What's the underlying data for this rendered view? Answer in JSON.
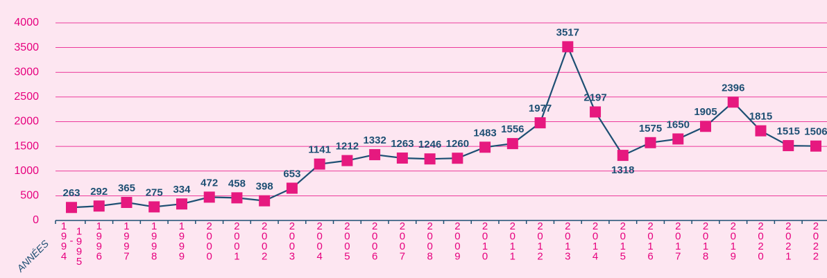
{
  "chart_data": {
    "type": "line",
    "x_label": "ANNÉES",
    "categories": [
      "1994-95",
      "1996",
      "1997",
      "1998",
      "1999",
      "2000",
      "2001",
      "2002",
      "2003",
      "2004",
      "2005",
      "2006",
      "2007",
      "2008",
      "2009",
      "2010",
      "2011",
      "2012",
      "2013",
      "2014",
      "2015",
      "2016",
      "2017",
      "2018",
      "2019",
      "2020",
      "2021",
      "2022"
    ],
    "values": [
      263,
      292,
      365,
      275,
      334,
      472,
      458,
      398,
      653,
      1141,
      1212,
      1332,
      1263,
      1246,
      1260,
      1483,
      1556,
      1977,
      3517,
      2197,
      1318,
      1575,
      1650,
      1905,
      2396,
      1815,
      1515,
      1506
    ],
    "line_color": "#1d4f73",
    "marker_color": "#e6197f",
    "ylim": [
      0,
      4000
    ],
    "yticks": [
      0,
      500,
      1000,
      1500,
      2000,
      2500,
      3000,
      3500,
      4000
    ],
    "grid": true
  }
}
